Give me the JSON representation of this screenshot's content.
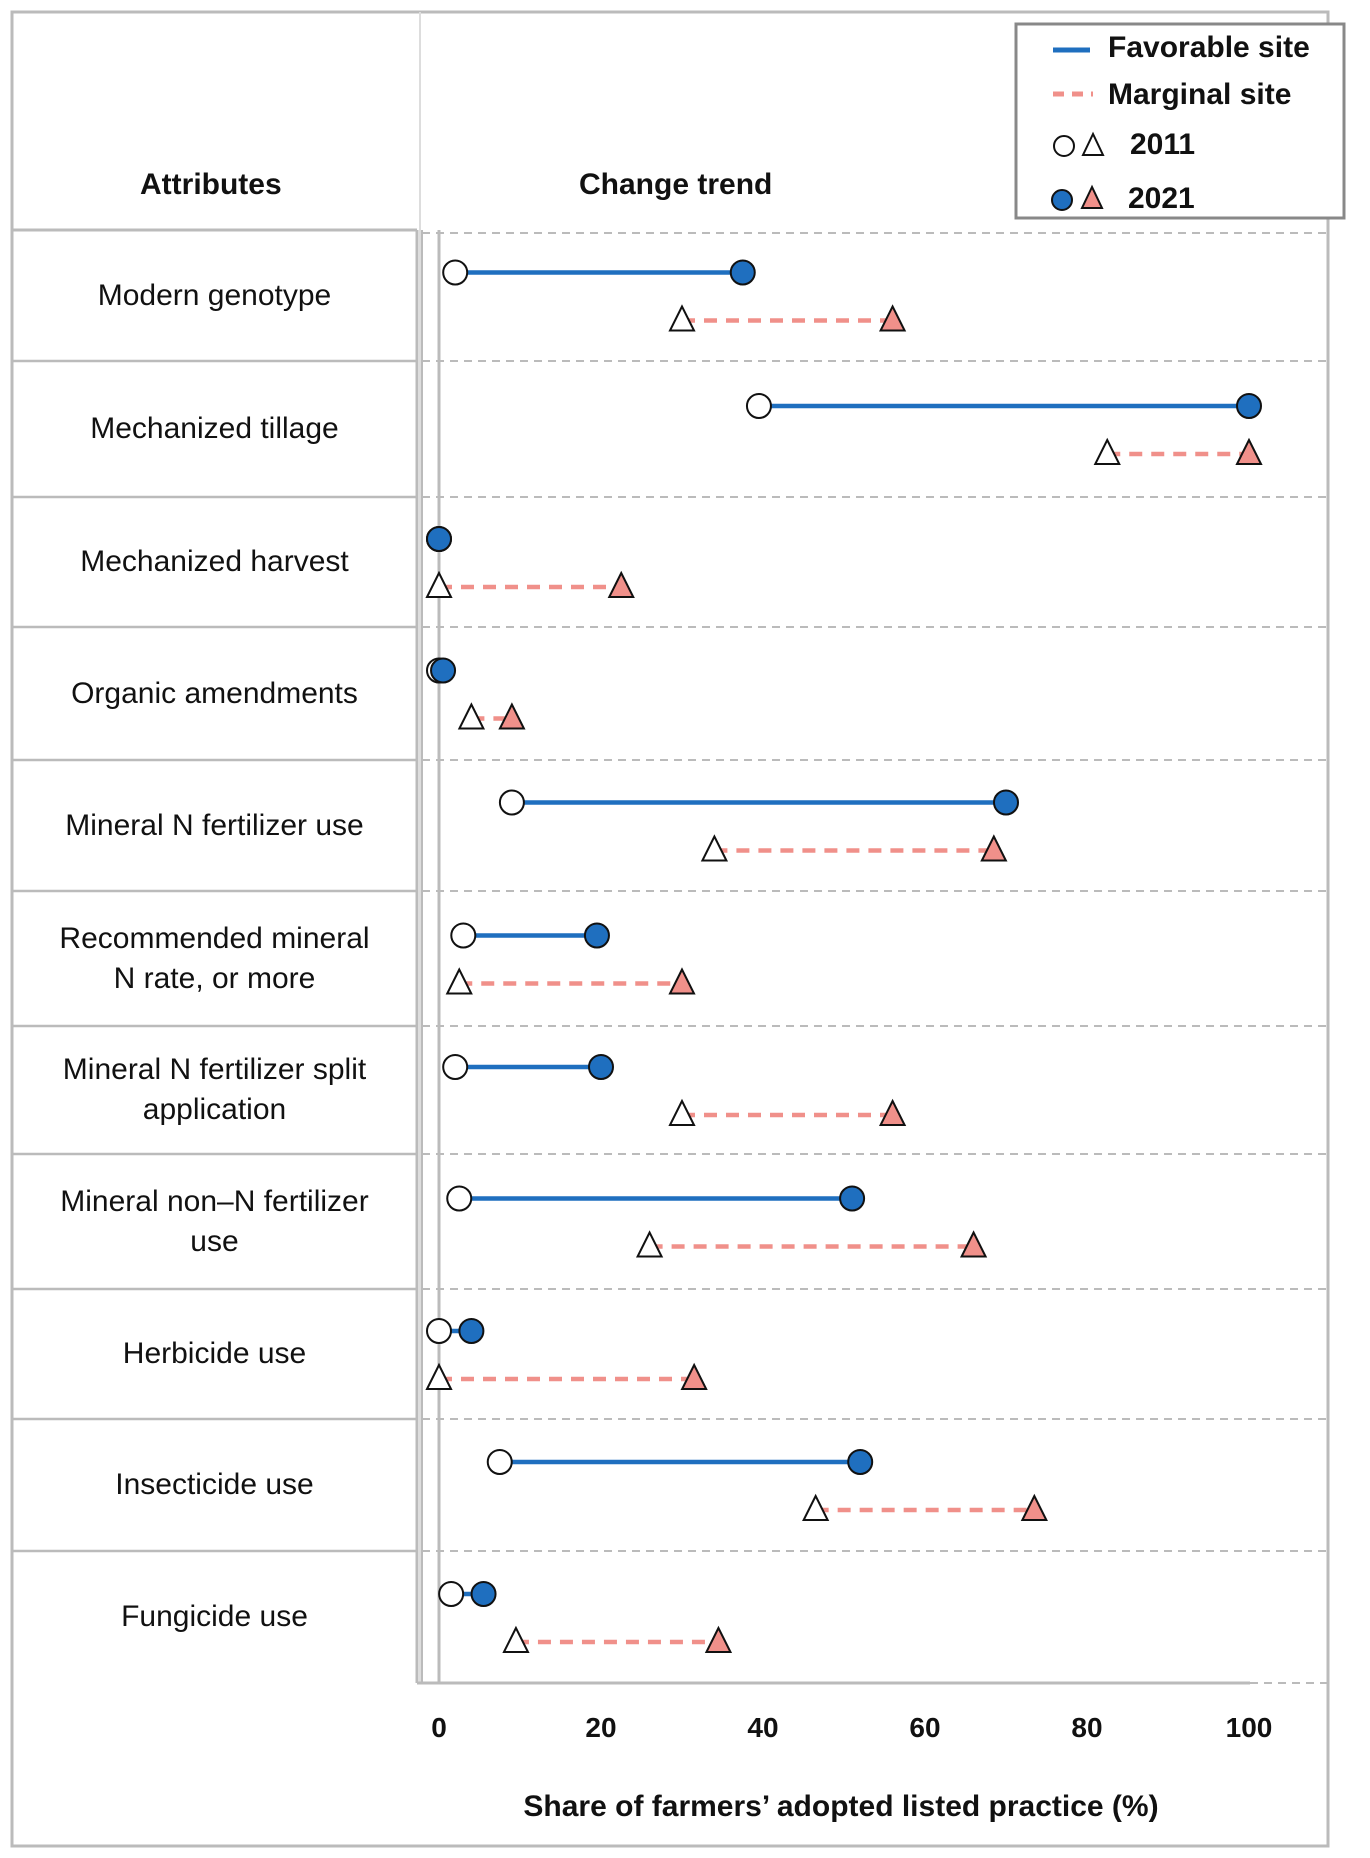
{
  "chart_data": {
    "type": "dumbbell",
    "headers": {
      "attributes": "Attributes",
      "trend": "Change trend"
    },
    "xlabel": "Share of farmers’ adopted listed practice (%)",
    "xlim": [
      0,
      100
    ],
    "xticks": [
      0,
      20,
      40,
      60,
      80,
      100
    ],
    "legend": {
      "position": "top-right",
      "favorable": "Favorable site",
      "marginal": "Marginal site",
      "year_start": "2011",
      "year_end": "2021"
    },
    "colors": {
      "favorable": "#1f6fbf",
      "marginal": "#f0908a",
      "grid": "#bbbbbb",
      "frame": "#bbbbbb"
    },
    "series": [
      {
        "name": "Favorable site",
        "values_2011": [
          2,
          39.5,
          0,
          0,
          9,
          3,
          2,
          2.5,
          0,
          7.5,
          1.5
        ],
        "values_2021": [
          37.5,
          100,
          0,
          0.5,
          70,
          19.5,
          20,
          51,
          4,
          52,
          5.5
        ]
      },
      {
        "name": "Marginal site",
        "values_2011": [
          30,
          82.5,
          0,
          4,
          34,
          2.5,
          30,
          26,
          0,
          46.5,
          9.5
        ],
        "values_2021": [
          56,
          100,
          22.5,
          9,
          68.5,
          30,
          56,
          66,
          31.5,
          73.5,
          34.5
        ]
      }
    ],
    "categories": [
      [
        "Modern genotype"
      ],
      [
        "Mechanized tillage"
      ],
      [
        "Mechanized harvest"
      ],
      [
        "Organic amendments"
      ],
      [
        "Mineral N fertilizer use"
      ],
      [
        "Recommended mineral",
        "N rate, or more"
      ],
      [
        "Mineral N fertilizer split",
        "application"
      ],
      [
        "Mineral non–N fertilizer",
        "use"
      ],
      [
        "Herbicide use"
      ],
      [
        "Insecticide use"
      ],
      [
        "Fungicide use"
      ]
    ]
  }
}
